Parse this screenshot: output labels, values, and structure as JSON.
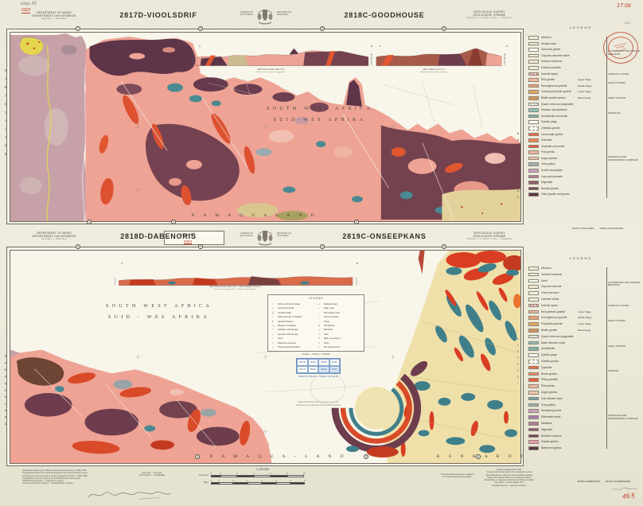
{
  "annotations": {
    "pencil_top_line1": "Map 45",
    "red_top_line2": "5323",
    "red_top_right": "17.09",
    "pencil_right": "1006",
    "red_bottom_right": "49.5",
    "stamp_l1": "GEOLOGIESE",
    "stamp_l2": "OPNAME",
    "stamp_l3": "PRETORIA",
    "map_box_pencil": "Map 45",
    "map_box_red": "5323"
  },
  "arms": {
    "left_l1": "REPUBLIC OF",
    "left_l2": "SOUTH AFRICA",
    "right_l1": "REPUBLIEK VAN",
    "right_l2": "SUID-AFRIKA"
  },
  "dept": {
    "l1": "DEPARTMENT OF MINES",
    "l2": "DEPARTEMENT VAN MYNWESE",
    "l3": "Secretary — Sekretaris"
  },
  "survey": {
    "l1": "GEOLOGICAL SURVEY",
    "l2": "GEOLOGIESE OPNAME",
    "l3": "Director: J. F. Enslin, D.Sc. — Direkteur"
  },
  "sheet1": {
    "title_left": "2817D-VIOOLSDRIF",
    "title_right": "2818C-GOODHOUSE",
    "area_line1": "SOUTH WEST AFRICA",
    "area_line2": "SUID-WES AFRIKA",
    "edge_bottom": "N A M A Q U A L A N D",
    "edge_left": "NAMAQUALAND",
    "edge_right": "NAMAQUALAND",
    "edge_numbers_top": [
      "1",
      "2",
      "3",
      "4"
    ],
    "edge_numbers_bottom": [
      "1",
      "2",
      "3"
    ],
    "section_markers": [
      "A",
      "B",
      "C",
      "D"
    ],
    "section1_caption1": "SECTION ALONG LINE A–B",
    "section1_caption2": "Vertical scale of sections exaggerated",
    "section2_caption1": "SNIT LANGS LYN C–D",
    "section2_caption2": "Vertikale skaal van snitte oordrewe",
    "legend": {
      "title": "LEGEND",
      "refs": "2817D-VIOOLSDRIF        2818C-GOODHOUSE",
      "rows": [
        {
          "c": "#f1ecd2",
          "t": "Alluvium"
        },
        {
          "c": "#f4efd8",
          "t": "Aeolian sand"
        },
        {
          "c": "#fdfcf5",
          "t": "Sand and gravel"
        },
        {
          "c": "#f1ead0",
          "t": "Clay and calcrete rubble"
        },
        {
          "c": "#efe9cd",
          "t": "Surface limestone"
        },
        {
          "c": "#f3eed6",
          "t": "Surface quartzite"
        },
        {
          "c": "#ffffff",
          "p": "sw-hatchred",
          "t": "Dolerite dykes"
        },
        {
          "c": "#f4b79d",
          "t": "Red granite",
          "m": "Upper Stage"
        },
        {
          "c": "#efa26d",
          "t": "Homogeneous granite",
          "m": "Middle Stage"
        },
        {
          "c": "#e9a55e",
          "t": "Coarse porphyritic granite",
          "m": "Lower Stage"
        },
        {
          "c": "#d89158",
          "t": "Biotite granite gneiss",
          "m": "Basal Stage"
        },
        {
          "c": "#ffffff",
          "p": "sw-hatchgrey",
          "t": "Quartz veins and pegmatite"
        },
        {
          "c": "#8fc2bd",
          "t": "Diabase and epidiorite"
        },
        {
          "c": "#7fb0ab",
          "t": "Amphibolite and schist"
        },
        {
          "c": "#ffffff",
          "p": "sw-dotsred",
          "t": "Syenite plugs"
        },
        {
          "c": "#fdfcf5",
          "p": "sw-dash",
          "t": "Gneissic granite"
        },
        {
          "c": "#ee6a3e",
          "t": "Leucocratic gneiss"
        },
        {
          "c": "#f08656",
          "t": "Granulite"
        },
        {
          "c": "#ea5a38",
          "t": "Quartzite and schist"
        },
        {
          "c": "#f2b79d",
          "t": "Pink gneiss"
        },
        {
          "c": "#f5c5ab",
          "t": "Augen gneiss"
        },
        {
          "c": "#9fb4b6",
          "t": "Grey gneiss"
        },
        {
          "c": "#c9a3c0",
          "t": "Schist and phyllite"
        },
        {
          "c": "#b27b92",
          "t": "Lava and andesite"
        },
        {
          "c": "#8f5a6f",
          "t": "Migmatite"
        },
        {
          "c": "#774457",
          "t": "Banded gneiss"
        },
        {
          "c": "#5e3447",
          "t": "Older granite and gneiss"
        }
      ],
      "groups": [
        {
          "t": "QUATERNARY AND RECENT DEPOSITS",
          "from": 0,
          "to": 5
        },
        {
          "t": "KARROO SYSTEM",
          "from": 6,
          "to": 6
        },
        {
          "t": "NAMA SYSTEM",
          "from": 7,
          "to": 8
        },
        {
          "t": "KHEIS SYSTEM",
          "from": 9,
          "to": 11
        },
        {
          "t": "MOKO­LIAN",
          "from": 12,
          "to": 13
        },
        {
          "t": "NAMAQUALAND METAMORPHIC COMPLEX",
          "from": 14,
          "to": 26
        }
      ]
    }
  },
  "sheet2": {
    "title_left": "2818D-DABENORIS",
    "title_right": "2819C-ONSEEPKANS",
    "area_line1": "SOUTH WEST AFRICA",
    "area_line2": "SUID - WES AFRIKA",
    "edge_bottom_left": "N A M A Q U A – L A N D",
    "edge_bottom_right": "K E N H A R D T",
    "edge_left": "NAMAQUALAND",
    "edge_right": "KENHARDT",
    "edge_numbers_top": [
      "1",
      "2",
      "3",
      "4"
    ],
    "edge_numbers_bottom": [
      "2",
      "3",
      "4"
    ],
    "section_markers": [
      "A",
      "B"
    ],
    "section_caption1": "SECTION ALONG LINE A–B  —  SNIT LANGS LYN A–B",
    "section_caption2": "Vertical scale exaggerated — Vertikale skaal oordrewe",
    "white_note1": "Adjoining published sheets are shown in the index",
    "white_note2": "Aangrensende gepubliseerde velle in indeks aangetoon",
    "index_caption": "INDEX OF SHEETS — INDEKS VAN VELLE",
    "index_cells": [
      "2817B",
      "2818A",
      "2818B",
      "2819A",
      "2817D",
      "2818C",
      "2818D",
      "2819C"
    ],
    "inset_legend": {
      "title": "LEGEND",
      "caption": "SCALE — SKAAL   1 : 125 000",
      "left": [
        {
          "s": "⟋",
          "t": "Strike and dip of strata"
        },
        {
          "s": "+",
          "t": "Horizontal strata"
        },
        {
          "s": "╳",
          "t": "Vertical strata"
        },
        {
          "s": "⟍",
          "t": "Strike and dip of foliation"
        },
        {
          "s": "∥",
          "t": "Vertical foliation"
        },
        {
          "s": "→",
          "t": "Plunge of lineation"
        },
        {
          "s": "⌃",
          "t": "Anticline with plunge"
        },
        {
          "s": "⌄",
          "t": "Syncline with plunge"
        },
        {
          "s": "—",
          "t": "Fault"
        },
        {
          "s": "◇",
          "t": "Diamond prospect"
        },
        {
          "s": "△",
          "t": "Trigonometrical station"
        }
      ],
      "right": [
        {
          "s": "═",
          "t": "National road"
        },
        {
          "s": "—",
          "t": "Main road"
        },
        {
          "s": "┄",
          "t": "Secondary road"
        },
        {
          "s": "┈",
          "t": "Farm boundary"
        },
        {
          "s": "⋯",
          "t": "Track"
        },
        {
          "s": "⊙",
          "t": "Windpump"
        },
        {
          "s": "○",
          "t": "Borehole"
        },
        {
          "s": "▭",
          "t": "Dam"
        },
        {
          "s": "✕",
          "t": "Mine or prospect"
        },
        {
          "s": "∿",
          "t": "River"
        },
        {
          "s": "┉",
          "t": "Dry watercourse"
        }
      ]
    },
    "legend": {
      "title": "LEGEND",
      "refs": "",
      "rows": [
        {
          "c": "#f1ecd2",
          "t": "Alluvium"
        },
        {
          "c": "#efe9cd",
          "t": "Surface limestone"
        },
        {
          "c": "#fdfcf5",
          "t": "Sand"
        },
        {
          "c": "#f1ead0",
          "t": "Clay and calcrete"
        },
        {
          "c": "#f4efd8",
          "t": "Gravel terraces"
        },
        {
          "c": "#f3eed6",
          "t": "Calcrete rubble"
        },
        {
          "c": "#ffffff",
          "p": "sw-hatchred",
          "t": "Dolerite dykes"
        },
        {
          "c": "#f4b79d",
          "t": "Red gneissic granite",
          "m": "Upper Stage"
        },
        {
          "c": "#efa26d",
          "t": "Homogeneous granite",
          "m": "Middle Stage"
        },
        {
          "c": "#e9a55e",
          "t": "Porphyritic granite",
          "m": "Lower Stage"
        },
        {
          "c": "#d89158",
          "t": "Biotite granite",
          "m": "Basal Stage"
        },
        {
          "c": "#ffffff",
          "p": "sw-hatchgrey",
          "t": "Quartz veins and pegmatite"
        },
        {
          "c": "#8fc2bd",
          "t": "Basic intrusive rocks"
        },
        {
          "c": "#7fb0ab",
          "t": "Amphibolite"
        },
        {
          "c": "#ffffff",
          "p": "sw-dotsred",
          "t": "Syenite plugs"
        },
        {
          "c": "#fdfcf5",
          "p": "sw-dash",
          "t": "Granitic gneiss"
        },
        {
          "c": "#ee6a3e",
          "t": "Quartzite"
        },
        {
          "c": "#f08656",
          "t": "Brown gneiss"
        },
        {
          "c": "#ea5a38",
          "t": "Pella quartzite"
        },
        {
          "c": "#f2b79d",
          "t": "Pink gneiss"
        },
        {
          "c": "#f5c5ab",
          "t": "Augen gneiss"
        },
        {
          "c": "#6fa3a8",
          "t": "Calc-silicate rocks"
        },
        {
          "c": "#9fb4b6",
          "t": "Grey gneiss"
        },
        {
          "c": "#c9a3c0",
          "t": "Khurisberg schist"
        },
        {
          "c": "#a87fa8",
          "t": "Sillimanite schist"
        },
        {
          "c": "#b27b92",
          "t": "Metalava"
        },
        {
          "c": "#8f5a6f",
          "t": "Migmatite"
        },
        {
          "c": "#774457",
          "t": "Banded ironstone"
        },
        {
          "c": "#e89aa8",
          "t": "Granite gneiss"
        },
        {
          "c": "#5e3447",
          "t": "Basement gneiss"
        }
      ],
      "groups": [
        {
          "t": "QUATERNARY AND RECENT DEPOSITS",
          "from": 0,
          "to": 5
        },
        {
          "t": "KARROO SYSTEM",
          "from": 6,
          "to": 6
        },
        {
          "t": "NAMA SYSTEM",
          "from": 7,
          "to": 10
        },
        {
          "t": "KHEIS SYSTEM",
          "from": 11,
          "to": 14
        },
        {
          "t": "KIBARAN",
          "from": 15,
          "to": 18
        },
        {
          "t": "NAMAQUALAND METAMORPHIC COMPLEX",
          "from": 19,
          "to": 29
        }
      ]
    }
  },
  "footer": {
    "notes_left": [
      "Geological survey by the officers of the Geological Survey, 1965–1969.",
      "Topographical base from aerial photographs and trigonometrical survey.",
      "Geologie deur die amptenare van die Geologiese Opname, 1965–1969.",
      "Topografiese basis uit lugfoto's en driehoeksmeting saamgestel.",
      "Published by authority — Uitgegee op gesag.",
      "Government Printer, Pretoria — Staatsdrukker, Pretoria."
    ],
    "price_line1": "Price 50c — Prys 50c",
    "price_line2": "COPYRIGHT — KOPIEREG",
    "scale_title": "1:125 000",
    "km_label": "Kilometres",
    "miles_label": "Miles",
    "km_ticks": [
      "2",
      "0",
      "2",
      "4",
      "6",
      "8",
      "10"
    ],
    "mile_ticks": [
      "1",
      "0",
      "1",
      "2",
      "3",
      "4",
      "5",
      "6"
    ],
    "notes_mid": [
      "The South African land base supplied by",
      "the Trigonometrical Survey Office."
    ],
    "notes_right": [
      "Aerial photography flown 1963.",
      "Geology compiled and drawn in the cartographic section.",
      "Kaart saamgestel en geteken in die kartografiese afdeling.",
      "Gravity and magnetic data by the Geophysics Division.",
      "Swaartekrag- en magnetiese data deur die Afdeling Geofisika.",
      "First edition — Eerste uitgawe 1972.",
      "Copyright reserved — Kopiereg voorbehou."
    ],
    "sheet_refs": "2818D-DABENORIS        2819C-ONSEEPKANS"
  }
}
